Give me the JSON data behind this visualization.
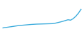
{
  "values": [
    6100,
    6150,
    6200,
    6250,
    6300,
    6350,
    6400,
    6430,
    6460,
    6490,
    6520,
    6550,
    6570,
    6590,
    6600,
    6610,
    6620,
    6630,
    6640,
    6650,
    6700,
    6780,
    6860,
    6950,
    7050,
    7150,
    7100,
    7300,
    7600,
    8000,
    8500
  ],
  "line_color": "#3aabdc",
  "background_color": "#ffffff",
  "linewidth": 1.0
}
